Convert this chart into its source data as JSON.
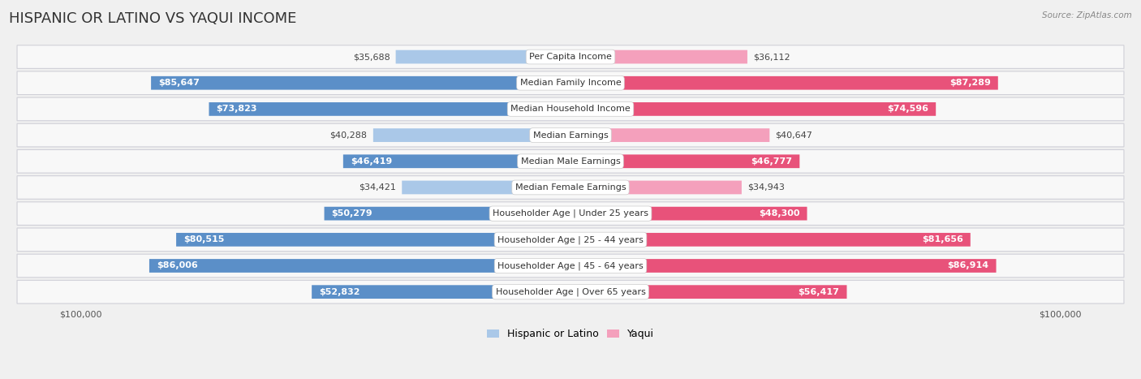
{
  "title": "HISPANIC OR LATINO VS YAQUI INCOME",
  "source": "Source: ZipAtlas.com",
  "categories": [
    "Per Capita Income",
    "Median Family Income",
    "Median Household Income",
    "Median Earnings",
    "Median Male Earnings",
    "Median Female Earnings",
    "Householder Age | Under 25 years",
    "Householder Age | 25 - 44 years",
    "Householder Age | 45 - 64 years",
    "Householder Age | Over 65 years"
  ],
  "hispanic_values": [
    35688,
    85647,
    73823,
    40288,
    46419,
    34421,
    50279,
    80515,
    86006,
    52832
  ],
  "yaqui_values": [
    36112,
    87289,
    74596,
    40647,
    46777,
    34943,
    48300,
    81656,
    86914,
    56417
  ],
  "hispanic_labels": [
    "$35,688",
    "$85,647",
    "$73,823",
    "$40,288",
    "$46,419",
    "$34,421",
    "$50,279",
    "$80,515",
    "$86,006",
    "$52,832"
  ],
  "yaqui_labels": [
    "$36,112",
    "$87,289",
    "$74,596",
    "$40,647",
    "$46,777",
    "$34,943",
    "$48,300",
    "$81,656",
    "$86,914",
    "$56,417"
  ],
  "hispanic_light_color": "#aac8e8",
  "hispanic_dark_color": "#5b8fc8",
  "yaqui_light_color": "#f4a0bc",
  "yaqui_dark_color": "#e8527a",
  "inside_label_threshold": 0.45,
  "max_value": 100000,
  "bg_color": "#f0f0f0",
  "row_bg_color": "#f8f8f8",
  "title_fontsize": 13,
  "label_fontsize": 8,
  "category_fontsize": 8,
  "axis_label_fontsize": 8,
  "legend_fontsize": 9
}
